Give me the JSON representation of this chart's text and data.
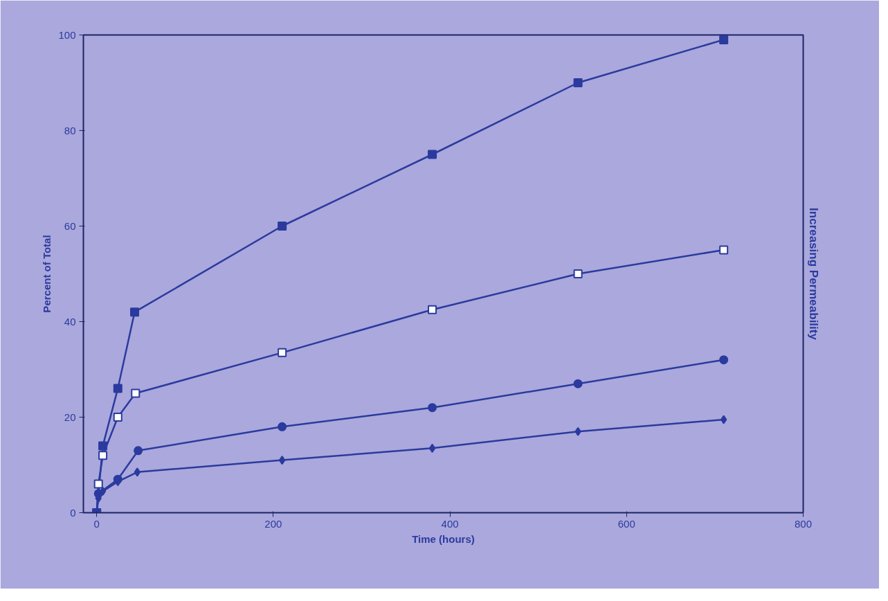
{
  "chart_data": {
    "type": "line",
    "xlabel": "Time (hours)",
    "ylabel": "Percent of Total",
    "annotations": [
      "Increasing Permeability"
    ],
    "xlim": [
      -15,
      800
    ],
    "ylim": [
      0,
      100
    ],
    "xticks": [
      0,
      200,
      400,
      600,
      800
    ],
    "yticks": [
      0,
      20,
      40,
      60,
      80,
      100
    ],
    "grid": false,
    "line_style": "solid",
    "series": [
      {
        "color": "#2b3a9e",
        "marker": "square",
        "x": [
          0,
          2,
          7,
          24,
          43,
          210,
          380,
          545,
          710
        ],
        "values": [
          0,
          null,
          14,
          26,
          42,
          60,
          75,
          90,
          99
        ]
      },
      {
        "color": "#2b3a9e",
        "marker": "square",
        "x": [
          0,
          2,
          7,
          24,
          44,
          210,
          380,
          545,
          710
        ],
        "values": [
          0,
          6,
          12,
          20,
          25,
          33.5,
          42.5,
          50,
          55
        ]
      },
      {
        "color": "#2b3a9e",
        "marker": "circle",
        "x": [
          0,
          2,
          7,
          24,
          47,
          210,
          380,
          545,
          710
        ],
        "values": [
          0,
          4,
          null,
          7,
          13,
          18,
          22,
          27,
          32
        ]
      },
      {
        "color": "#2b3a9e",
        "marker": "diamond",
        "x": [
          0,
          2,
          7,
          24,
          46,
          210,
          380,
          545,
          710
        ],
        "values": [
          0,
          3,
          4.5,
          6.5,
          8.5,
          11,
          13.5,
          17,
          19.5
        ]
      }
    ]
  }
}
